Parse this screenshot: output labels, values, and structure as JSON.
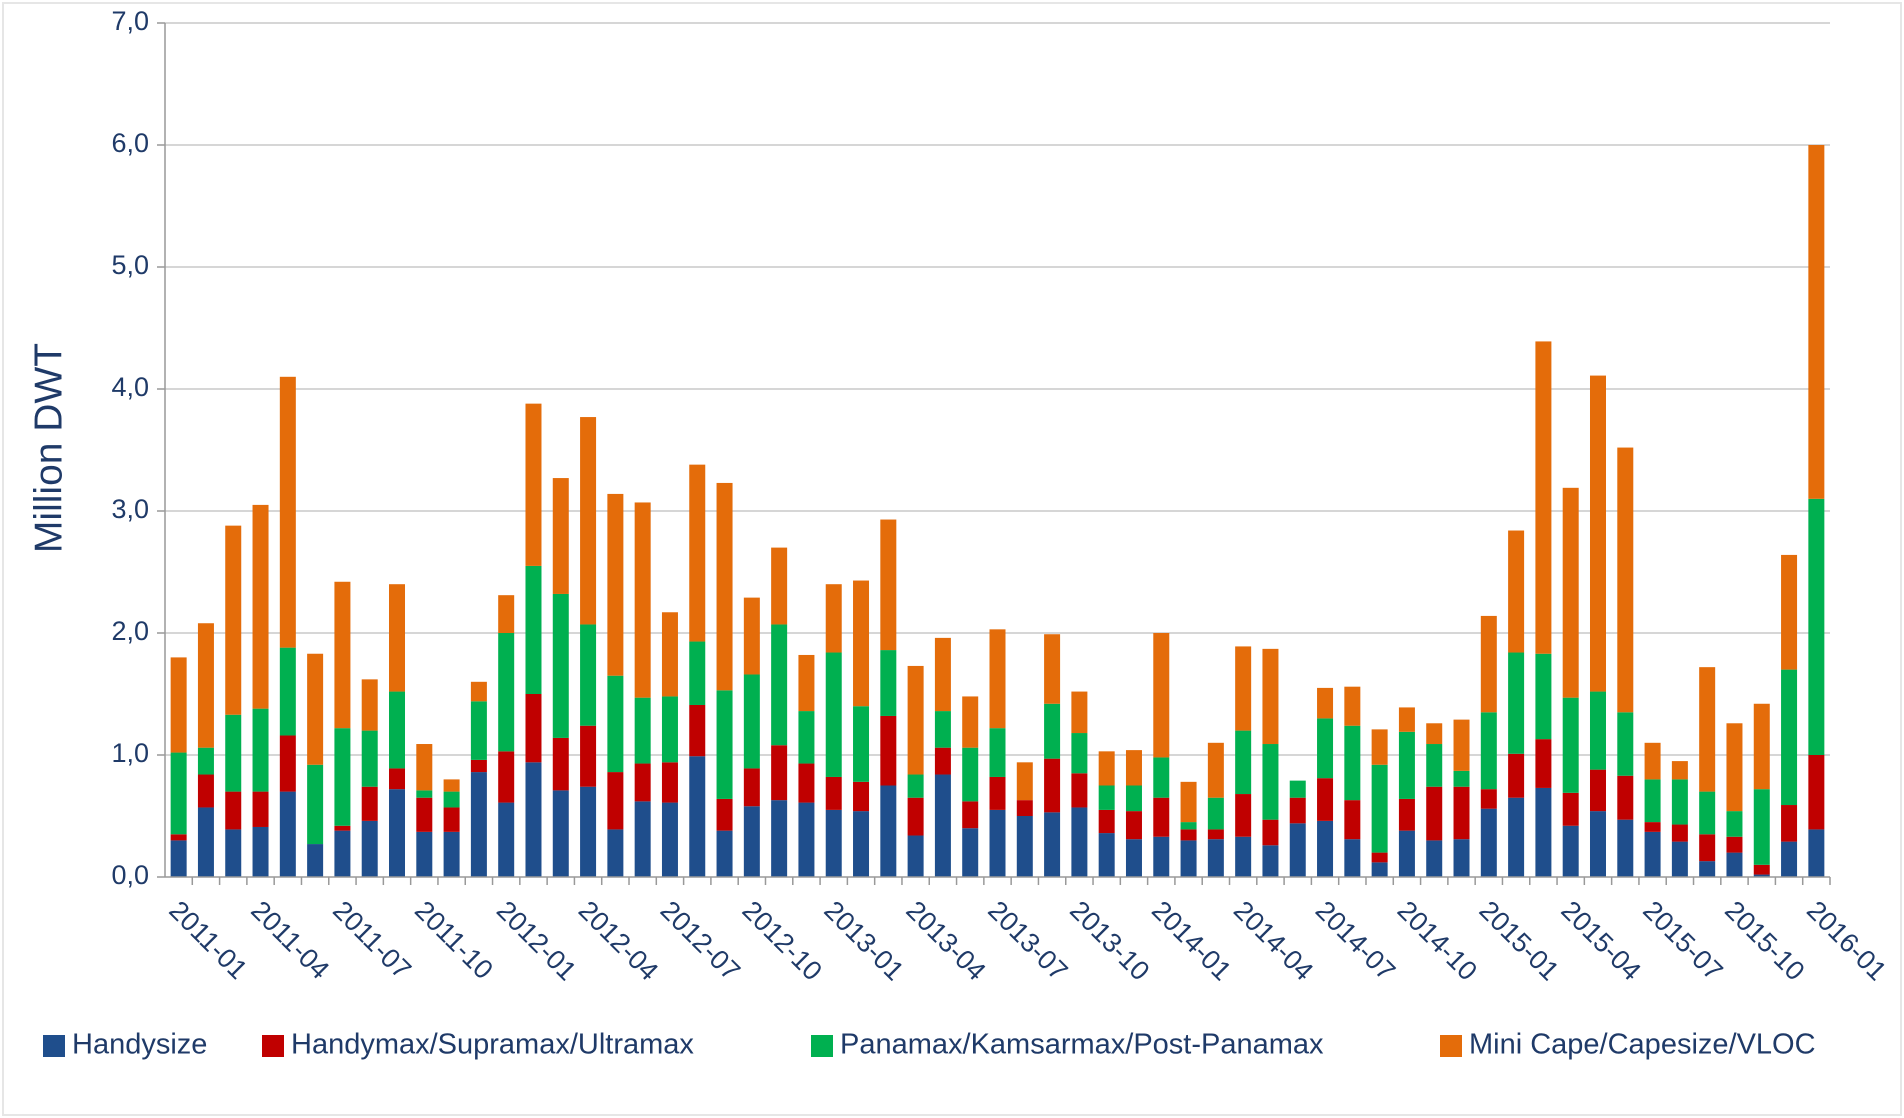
{
  "chart_data": {
    "type": "stacked_bar",
    "y_label": "Million DWT",
    "categories": [
      "2011-01",
      null,
      null,
      "2011-04",
      null,
      null,
      "2011-07",
      null,
      null,
      "2011-10",
      null,
      null,
      "2012-01",
      null,
      null,
      "2012-04",
      null,
      null,
      "2012-07",
      null,
      null,
      "2012-10",
      null,
      null,
      "2013-01",
      null,
      null,
      "2013-04",
      null,
      null,
      "2013-07",
      null,
      null,
      "2013-10",
      null,
      null,
      "2014-01",
      null,
      null,
      "2014-04",
      null,
      null,
      "2014-07",
      null,
      null,
      "2014-10",
      null,
      null,
      "2015-01",
      null,
      null,
      "2015-04",
      null,
      null,
      "2015-07",
      null,
      null,
      "2015-10",
      null,
      null,
      "2016-01"
    ],
    "series": [
      {
        "name": "Handysize",
        "color": "#1f4e8c",
        "values": [
          0.3,
          0.57,
          0.39,
          0.41,
          0.7,
          0.27,
          0.38,
          0.46,
          0.72,
          0.37,
          0.37,
          0.86,
          0.61,
          0.94,
          0.71,
          0.74,
          0.39,
          0.62,
          0.61,
          0.99,
          0.38,
          0.58,
          0.63,
          0.61,
          0.55,
          0.54,
          0.75,
          0.34,
          0.84,
          0.4,
          0.55,
          0.5,
          0.53,
          0.57,
          0.36,
          0.31,
          0.33,
          0.3,
          0.31,
          0.33,
          0.26,
          0.44,
          0.46,
          0.31,
          0.12,
          0.38,
          0.3,
          0.31,
          0.56,
          0.65,
          0.73,
          0.42,
          0.54,
          0.47,
          0.37,
          0.29,
          0.13,
          0.2,
          0.02,
          0.29,
          0.39
        ]
      },
      {
        "name": "Handymax/Supramax/Ultramax",
        "color": "#c00000",
        "values": [
          0.05,
          0.27,
          0.31,
          0.29,
          0.46,
          0,
          0.04,
          0.28,
          0.17,
          0.28,
          0.2,
          0.1,
          0.42,
          0.56,
          0.43,
          0.5,
          0.47,
          0.31,
          0.33,
          0.42,
          0.26,
          0.31,
          0.45,
          0.32,
          0.27,
          0.24,
          0.57,
          0.31,
          0.22,
          0.22,
          0.27,
          0.13,
          0.44,
          0.28,
          0.19,
          0.23,
          0.32,
          0.09,
          0.08,
          0.35,
          0.21,
          0.21,
          0.35,
          0.32,
          0.08,
          0.26,
          0.44,
          0.43,
          0.16,
          0.36,
          0.4,
          0.27,
          0.34,
          0.36,
          0.08,
          0.14,
          0.22,
          0.13,
          0.08,
          0.3,
          0.61
        ]
      },
      {
        "name": "Panamax/Kamsarmax/Post-Panamax",
        "color": "#00b050",
        "values": [
          0.67,
          0.22,
          0.63,
          0.68,
          0.72,
          0.65,
          0.8,
          0.46,
          0.63,
          0.06,
          0.13,
          0.48,
          0.97,
          1.05,
          1.18,
          0.83,
          0.79,
          0.54,
          0.54,
          0.52,
          0.89,
          0.77,
          0.99,
          0.43,
          1.02,
          0.62,
          0.54,
          0.19,
          0.3,
          0.44,
          0.4,
          0,
          0.45,
          0.33,
          0.2,
          0.21,
          0.33,
          0.06,
          0.26,
          0.52,
          0.62,
          0.14,
          0.49,
          0.61,
          0.72,
          0.55,
          0.35,
          0.13,
          0.63,
          0.83,
          0.7,
          0.78,
          0.64,
          0.52,
          0.35,
          0.37,
          0.35,
          0.21,
          0.62,
          1.11,
          2.1
        ]
      },
      {
        "name": "Mini Cape/Capesize/VLOC",
        "color": "#e46c0a",
        "values": [
          0.78,
          1.02,
          1.55,
          1.67,
          2.22,
          0.91,
          1.2,
          0.42,
          0.88,
          0.38,
          0.1,
          0.16,
          0.31,
          1.33,
          0.95,
          1.7,
          1.49,
          1.6,
          0.69,
          1.45,
          1.7,
          0.63,
          0.63,
          0.46,
          0.56,
          1.03,
          1.07,
          0.89,
          0.6,
          0.42,
          0.81,
          0.31,
          0.57,
          0.34,
          0.28,
          0.29,
          1.02,
          0.33,
          0.45,
          0.69,
          0.78,
          0,
          0.25,
          0.32,
          0.29,
          0.2,
          0.17,
          0.42,
          0.79,
          1.0,
          2.56,
          1.72,
          2.59,
          2.17,
          0.3,
          0.15,
          1.02,
          0.72,
          0.7,
          0.94,
          2.9
        ]
      }
    ],
    "ylim": [
      0,
      7
    ],
    "yticks": [
      {
        "value": 0,
        "label": "0,0"
      },
      {
        "value": 1,
        "label": "1,0"
      },
      {
        "value": 2,
        "label": "2,0"
      },
      {
        "value": 3,
        "label": "3,0"
      },
      {
        "value": 4,
        "label": "4,0"
      },
      {
        "value": 5,
        "label": "5,0"
      },
      {
        "value": 6,
        "label": "6,0"
      },
      {
        "value": 7,
        "label": "7,0"
      }
    ],
    "grid": true
  }
}
